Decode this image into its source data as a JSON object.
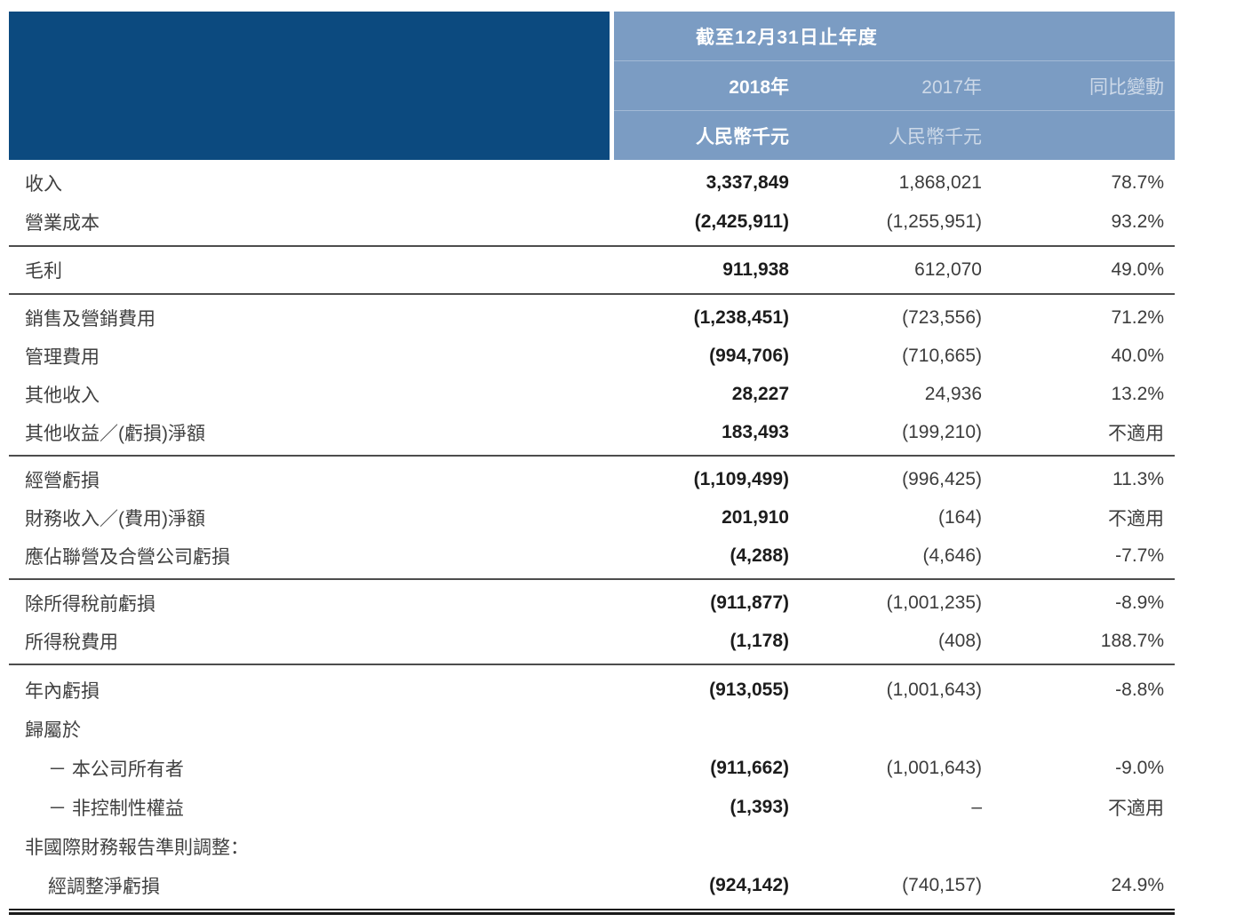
{
  "colors": {
    "header_dark_blue": "#0c4a7f",
    "header_light_blue": "#7b9cc3",
    "rule_gray": "#4d4d4d",
    "bottom_rule_black": "#1a1a1a"
  },
  "header": {
    "period_title": "截至12月31日止年度",
    "col_2018": "2018年",
    "col_2017": "2017年",
    "col_change": "同比變動",
    "unit_2018": "人民幣千元",
    "unit_2017": "人民幣千元"
  },
  "table": {
    "sections": [
      {
        "rows": [
          {
            "label": "收入",
            "v2018": "3,337,849",
            "v2017": "1,868,021",
            "change": "78.7%"
          },
          {
            "label": "營業成本",
            "v2018": "(2,425,911)",
            "v2017": "(1,255,951)",
            "change": "93.2%"
          }
        ]
      },
      {
        "rows": [
          {
            "label": "毛利",
            "v2018": "911,938",
            "v2017": "612,070",
            "change": "49.0%"
          }
        ]
      },
      {
        "rows": [
          {
            "label": "銷售及營銷費用",
            "v2018": "(1,238,451)",
            "v2017": "(723,556)",
            "change": "71.2%"
          },
          {
            "label": "管理費用",
            "v2018": "(994,706)",
            "v2017": "(710,665)",
            "change": "40.0%"
          },
          {
            "label": "其他收入",
            "v2018": "28,227",
            "v2017": "24,936",
            "change": "13.2%"
          },
          {
            "label": "其他收益／(虧損)淨額",
            "v2018": "183,493",
            "v2017": "(199,210)",
            "change": "不適用"
          }
        ]
      },
      {
        "rows": [
          {
            "label": "經營虧損",
            "v2018": "(1,109,499)",
            "v2017": "(996,425)",
            "change": "11.3%"
          },
          {
            "label": "財務收入／(費用)淨額",
            "v2018": "201,910",
            "v2017": "(164)",
            "change": "不適用"
          },
          {
            "label": "應佔聯營及合營公司虧損",
            "v2018": "(4,288)",
            "v2017": "(4,646)",
            "change": "-7.7%"
          }
        ]
      },
      {
        "rows": [
          {
            "label": "除所得稅前虧損",
            "v2018": "(911,877)",
            "v2017": "(1,001,235)",
            "change": "-8.9%"
          },
          {
            "label": "所得稅費用",
            "v2018": "(1,178)",
            "v2017": "(408)",
            "change": "188.7%"
          }
        ]
      },
      {
        "rows": [
          {
            "label": "年內虧損",
            "v2018": "(913,055)",
            "v2017": "(1,001,643)",
            "change": "-8.8%"
          },
          {
            "label": "歸屬於",
            "v2018": "",
            "v2017": "",
            "change": ""
          },
          {
            "label": "－ 本公司所有者",
            "indent": true,
            "v2018": "(911,662)",
            "v2017": "(1,001,643)",
            "change": "-9.0%"
          },
          {
            "label": "－ 非控制性權益",
            "indent": true,
            "v2018": "(1,393)",
            "v2017": "–",
            "change": "不適用"
          },
          {
            "label": "非國際財務報告準則調整：",
            "v2018": "",
            "v2017": "",
            "change": ""
          },
          {
            "label": "經調整淨虧損",
            "indent": true,
            "v2018": "(924,142)",
            "v2017": "(740,157)",
            "change": "24.9%"
          }
        ]
      }
    ]
  }
}
